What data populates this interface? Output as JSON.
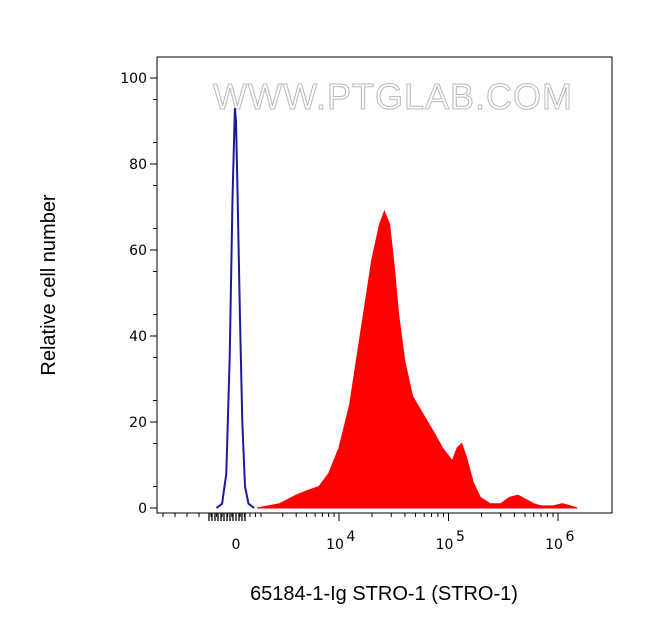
{
  "watermark": "WWW.PTGLAB.COM",
  "chart_data": {
    "type": "area",
    "xlabel": "65184-1-Ig STRO-1 (STRO-1)",
    "ylabel": "Relative cell number",
    "x_scale": "biexponential",
    "ylim": [
      0,
      100
    ],
    "y_ticks": [
      {
        "value": 0,
        "label": "0"
      },
      {
        "value": 20,
        "label": "20"
      },
      {
        "value": 40,
        "label": "40"
      },
      {
        "value": 60,
        "label": "60"
      },
      {
        "value": 80,
        "label": "80"
      },
      {
        "value": 100,
        "label": "100"
      }
    ],
    "x_ticks": [
      {
        "value": 0,
        "label": "0",
        "exp": ""
      },
      {
        "value": 10000,
        "label": "10",
        "exp": "4"
      },
      {
        "value": 100000,
        "label": "10",
        "exp": "5"
      },
      {
        "value": 1000000,
        "label": "10",
        "exp": "6"
      }
    ],
    "grid": false,
    "legend": "none",
    "series": [
      {
        "style": "outline",
        "color": "#1a1a9a",
        "points": [
          [
            -1400,
            0
          ],
          [
            -1000,
            1
          ],
          [
            -700,
            8
          ],
          [
            -450,
            35
          ],
          [
            -250,
            72
          ],
          [
            -80,
            93
          ],
          [
            0,
            90
          ],
          [
            100,
            75
          ],
          [
            280,
            45
          ],
          [
            450,
            20
          ],
          [
            650,
            5
          ],
          [
            900,
            1
          ],
          [
            1300,
            0
          ]
        ]
      },
      {
        "style": "filled",
        "color": "#ff0000",
        "points": [
          [
            1500,
            0
          ],
          [
            2800,
            1
          ],
          [
            4000,
            3
          ],
          [
            5000,
            4
          ],
          [
            6500,
            5
          ],
          [
            8000,
            8
          ],
          [
            10000,
            14
          ],
          [
            12500,
            24
          ],
          [
            16000,
            42
          ],
          [
            20000,
            58
          ],
          [
            23500,
            66
          ],
          [
            26000,
            69
          ],
          [
            29000,
            66
          ],
          [
            32000,
            56
          ],
          [
            35000,
            45
          ],
          [
            40000,
            34
          ],
          [
            47000,
            26
          ],
          [
            58000,
            22
          ],
          [
            72000,
            18
          ],
          [
            88000,
            14
          ],
          [
            108000,
            11
          ],
          [
            120000,
            14
          ],
          [
            132000,
            15
          ],
          [
            145000,
            12
          ],
          [
            168000,
            6
          ],
          [
            195000,
            2.5
          ],
          [
            240000,
            1
          ],
          [
            300000,
            1
          ],
          [
            360000,
            2.5
          ],
          [
            430000,
            3
          ],
          [
            510000,
            2
          ],
          [
            600000,
            1
          ],
          [
            700000,
            0.5
          ],
          [
            900000,
            0.5
          ],
          [
            1100000,
            1
          ],
          [
            1300000,
            0.5
          ],
          [
            1500000,
            0
          ]
        ]
      }
    ]
  }
}
